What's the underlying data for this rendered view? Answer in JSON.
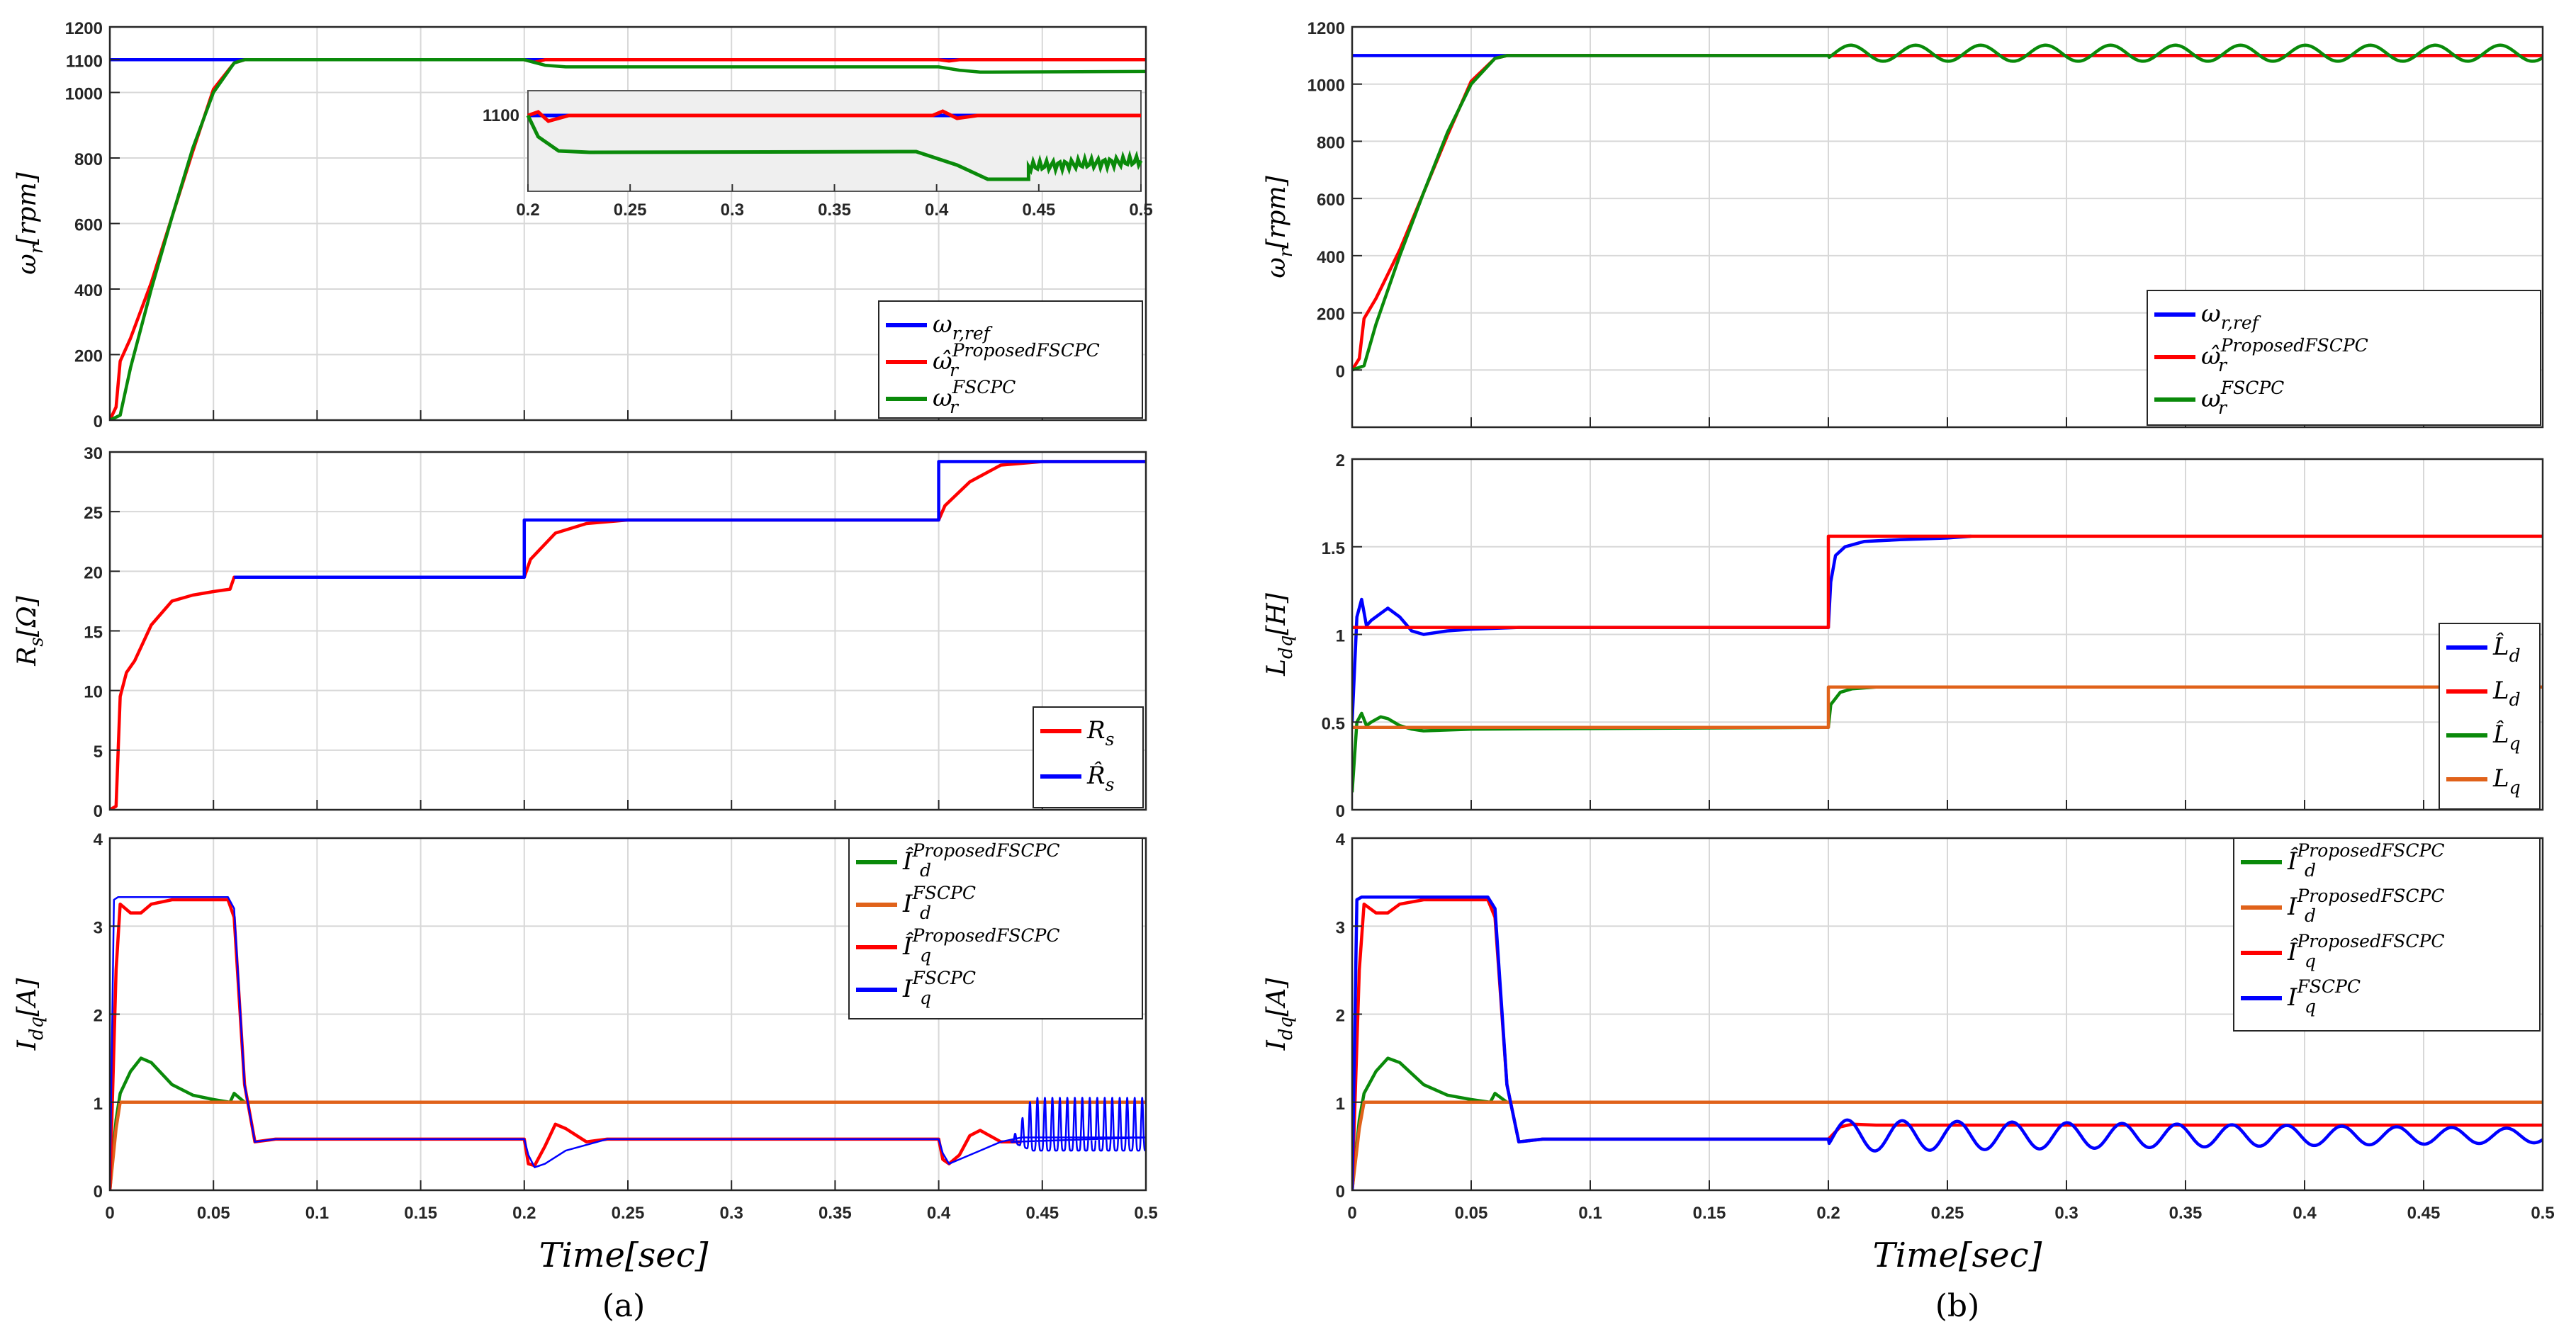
{
  "figure": {
    "xlabel": "Time[sec]",
    "captions": [
      "(a)",
      "(b)"
    ]
  },
  "colors": {
    "ref": "#0000ff",
    "proposed": "#ff0000",
    "fscpc": "#0a8a0a",
    "orange": "#e0621a",
    "grid": "#d8d8d8"
  },
  "chart_data": [
    {
      "id": "a1",
      "type": "line",
      "ylabel": "ω_r[rpm]",
      "ylabel_main": "ω",
      "ylabel_sub": "r",
      "ylabel_unit": "[rpm]",
      "xlim": [
        0,
        0.5
      ],
      "ylim": [
        0,
        1200
      ],
      "yticks": [
        0,
        200,
        400,
        600,
        800,
        1000,
        1100,
        1200
      ],
      "xticks": [
        0,
        0.05,
        0.1,
        0.15,
        0.2,
        0.25,
        0.3,
        0.35,
        0.4,
        0.45,
        0.5
      ],
      "show_xtick_labels": false,
      "legend": [
        "ω_r,ref",
        "ω̂_r^ProposedFSCPC",
        "ω_r^FSCPC"
      ],
      "legend_main": [
        "ω",
        "ω̂",
        "ω"
      ],
      "legend_sub": [
        "r,ref",
        "r",
        "r"
      ],
      "legend_sup": [
        "",
        "ProposedFSCPC",
        "FSCPC"
      ],
      "series": [
        {
          "name": "ω_r,ref",
          "color": "#0000ff",
          "x": [
            0,
            0.5
          ],
          "y": [
            1100,
            1100
          ]
        },
        {
          "name": "ω̂_r^ProposedFSCPC",
          "color": "#ff0000",
          "x": [
            0,
            0.003,
            0.005,
            0.01,
            0.02,
            0.03,
            0.04,
            0.05,
            0.06,
            0.065,
            0.2,
            0.205,
            0.21,
            0.4,
            0.405,
            0.41,
            0.5
          ],
          "y": [
            0,
            40,
            180,
            250,
            420,
            620,
            820,
            1010,
            1090,
            1100,
            1100,
            1092,
            1100,
            1100,
            1096,
            1100,
            1100
          ]
        },
        {
          "name": "ω_r^FSCPC",
          "color": "#0a8a0a",
          "x": [
            0,
            0.005,
            0.01,
            0.02,
            0.03,
            0.04,
            0.05,
            0.06,
            0.065,
            0.2,
            0.21,
            0.22,
            0.4,
            0.41,
            0.42,
            0.5
          ],
          "y": [
            0,
            15,
            160,
            400,
            620,
            830,
            1000,
            1090,
            1100,
            1100,
            1083,
            1078,
            1078,
            1068,
            1062,
            1064
          ]
        }
      ],
      "inset": {
        "xlim": [
          0.2,
          0.5
        ],
        "ytick_label": "1100",
        "xticks": [
          0.2,
          0.25,
          0.3,
          0.35,
          0.4,
          0.45,
          0.5
        ]
      }
    },
    {
      "id": "a2",
      "type": "line",
      "ylabel": "R_s[Ω]",
      "ylabel_main": "R",
      "ylabel_sub": "s",
      "ylabel_unit": "[Ω]",
      "xlim": [
        0,
        0.5
      ],
      "ylim": [
        0,
        30
      ],
      "yticks": [
        0,
        5,
        10,
        15,
        20,
        25,
        30
      ],
      "xticks": [
        0,
        0.05,
        0.1,
        0.15,
        0.2,
        0.25,
        0.3,
        0.35,
        0.4,
        0.45,
        0.5
      ],
      "show_xtick_labels": false,
      "legend": [
        "R_s",
        "R̂_s"
      ],
      "legend_main": [
        "R",
        "R̂"
      ],
      "legend_sub": [
        "s",
        "s"
      ],
      "legend_sup": [
        "",
        ""
      ],
      "series": [
        {
          "name": "R_s",
          "color": "#ff0000",
          "x": [
            0,
            0.003,
            0.005,
            0.008,
            0.012,
            0.02,
            0.03,
            0.04,
            0.05,
            0.058,
            0.06,
            0.2,
            0.203,
            0.215,
            0.23,
            0.25,
            0.4,
            0.403,
            0.415,
            0.43,
            0.45,
            0.5
          ],
          "y": [
            0,
            0.3,
            9.5,
            11.5,
            12.5,
            15.5,
            17.5,
            18.0,
            18.3,
            18.5,
            19.5,
            19.5,
            21,
            23.2,
            24.0,
            24.3,
            24.3,
            25.5,
            27.5,
            28.9,
            29.2,
            29.2
          ]
        },
        {
          "name": "R̂_s",
          "color": "#0000ff",
          "x": [
            0.06,
            0.2,
            0.2,
            0.4,
            0.4,
            0.5
          ],
          "y": [
            19.5,
            19.5,
            24.3,
            24.3,
            29.2,
            29.2
          ]
        }
      ]
    },
    {
      "id": "a3",
      "type": "line",
      "ylabel": "I_dq[A]",
      "ylabel_main": "I",
      "ylabel_sub": "dq",
      "ylabel_unit": "[A]",
      "xlim": [
        0,
        0.5
      ],
      "ylim": [
        0,
        4
      ],
      "yticks": [
        0,
        1,
        2,
        3,
        4
      ],
      "xticks": [
        0,
        0.05,
        0.1,
        0.15,
        0.2,
        0.25,
        0.3,
        0.35,
        0.4,
        0.45,
        0.5
      ],
      "xtick_labels": [
        "0",
        "0.05",
        "0.1",
        "0.15",
        "0.2",
        "0.25",
        "0.3",
        "0.35",
        "0.4",
        "0.45",
        "0.5"
      ],
      "show_xtick_labels": true,
      "legend": [
        "Î_d^ProposedFSCPC",
        "I_d^FSCPC",
        "Î_q^ProposedFSCPC",
        "I_q^FSCPC"
      ],
      "legend_main": [
        "Î",
        "I",
        "Î",
        "I"
      ],
      "legend_sub": [
        "d",
        "d",
        "q",
        "q"
      ],
      "legend_sup": [
        "ProposedFSCPC",
        "FSCPC",
        "ProposedFSCPC",
        "FSCPC"
      ],
      "series": [
        {
          "name": "Î_d^ProposedFSCPC",
          "color": "#0a8a0a",
          "x": [
            0,
            0.003,
            0.005,
            0.01,
            0.015,
            0.02,
            0.03,
            0.04,
            0.05,
            0.058,
            0.06,
            0.065,
            0.5
          ],
          "y": [
            0,
            0.8,
            1.1,
            1.35,
            1.5,
            1.45,
            1.2,
            1.08,
            1.03,
            1.0,
            1.1,
            1.0,
            1.0
          ]
        },
        {
          "name": "I_d^FSCPC",
          "color": "#e0621a",
          "x": [
            0,
            0.003,
            0.005,
            0.5
          ],
          "y": [
            0,
            0.7,
            1.0,
            1.0
          ]
        },
        {
          "name": "Î_q^ProposedFSCPC",
          "color": "#ff0000",
          "x": [
            0,
            0.003,
            0.005,
            0.01,
            0.015,
            0.02,
            0.03,
            0.04,
            0.05,
            0.057,
            0.06,
            0.065,
            0.07,
            0.08,
            0.2,
            0.202,
            0.205,
            0.21,
            0.215,
            0.22,
            0.23,
            0.24,
            0.4,
            0.402,
            0.405,
            0.41,
            0.415,
            0.42,
            0.43,
            0.44
          ],
          "y": [
            0,
            2.5,
            3.25,
            3.15,
            3.15,
            3.25,
            3.3,
            3.3,
            3.3,
            3.3,
            3.1,
            1.2,
            0.55,
            0.58,
            0.58,
            0.3,
            0.28,
            0.5,
            0.75,
            0.7,
            0.55,
            0.58,
            0.58,
            0.35,
            0.3,
            0.4,
            0.62,
            0.68,
            0.55,
            0.55
          ]
        },
        {
          "name": "I_q^FSCPC",
          "color": "#0000ff",
          "x": [
            0,
            0.002,
            0.004,
            0.057,
            0.06,
            0.065,
            0.07,
            0.08,
            0.2,
            0.202,
            0.205,
            0.21,
            0.22,
            0.24,
            0.4,
            0.402,
            0.405,
            0.41,
            0.42,
            0.43,
            0.44,
            0.5
          ],
          "y": [
            0,
            3.3,
            3.33,
            3.33,
            3.2,
            1.2,
            0.55,
            0.58,
            0.58,
            0.4,
            0.26,
            0.3,
            0.45,
            0.58,
            0.58,
            0.42,
            0.3,
            0.35,
            0.45,
            0.55,
            0.6,
            0.6
          ],
          "oscillation": {
            "x_start": 0.435,
            "x_end": 0.5,
            "cycles": 18,
            "low": 0.45,
            "high": 1.05
          }
        }
      ]
    },
    {
      "id": "b1",
      "type": "line",
      "ylabel": "ω_r[rpm]",
      "ylabel_main": "ω",
      "ylabel_sub": "r",
      "ylabel_unit": "[rpm]",
      "xlim": [
        0,
        0.5
      ],
      "ylim": [
        -200,
        1200
      ],
      "yticks": [
        0,
        200,
        400,
        600,
        800,
        1000,
        1200
      ],
      "xticks": [
        0,
        0.05,
        0.1,
        0.15,
        0.2,
        0.25,
        0.3,
        0.35,
        0.4,
        0.45,
        0.5
      ],
      "show_xtick_labels": false,
      "legend": [
        "ω_r,ref",
        "ω̂_r^ProposedFSCPC",
        "ω_r^FSCPC"
      ],
      "legend_main": [
        "ω",
        "ω̂",
        "ω"
      ],
      "legend_sub": [
        "r,ref",
        "r",
        "r"
      ],
      "legend_sup": [
        "",
        "ProposedFSCPC",
        "FSCPC"
      ],
      "series": [
        {
          "name": "ω_r,ref",
          "color": "#0000ff",
          "x": [
            0,
            0.5
          ],
          "y": [
            1100,
            1100
          ]
        },
        {
          "name": "ω̂_r^ProposedFSCPC",
          "color": "#ff0000",
          "x": [
            0,
            0.003,
            0.005,
            0.01,
            0.02,
            0.03,
            0.04,
            0.05,
            0.06,
            0.065,
            0.5
          ],
          "y": [
            0,
            40,
            180,
            250,
            420,
            620,
            820,
            1010,
            1090,
            1100,
            1100
          ]
        },
        {
          "name": "ω_r^FSCPC",
          "color": "#0a8a0a",
          "x": [
            0,
            0.005,
            0.01,
            0.02,
            0.03,
            0.04,
            0.05,
            0.06,
            0.065,
            0.2
          ],
          "y": [
            0,
            15,
            160,
            400,
            620,
            830,
            1000,
            1090,
            1100,
            1100
          ],
          "oscillation": {
            "x_start": 0.2,
            "x_end": 0.5,
            "cycles": 11,
            "center": 1108,
            "amplitude": 28
          }
        }
      ]
    },
    {
      "id": "b2",
      "type": "line",
      "ylabel": "L_dq[H]",
      "ylabel_main": "L",
      "ylabel_sub": "dq",
      "ylabel_unit": "[H]",
      "xlim": [
        0,
        0.5
      ],
      "ylim": [
        0,
        2
      ],
      "yticks": [
        0,
        0.5,
        1,
        1.5,
        2
      ],
      "xticks": [
        0,
        0.05,
        0.1,
        0.15,
        0.2,
        0.25,
        0.3,
        0.35,
        0.4,
        0.45,
        0.5
      ],
      "show_xtick_labels": false,
      "legend": [
        "L̂_d",
        "L_d",
        "L̂_q",
        "L_q"
      ],
      "legend_main": [
        "L̂",
        "L",
        "L̂",
        "L"
      ],
      "legend_sub": [
        "d",
        "d",
        "q",
        "q"
      ],
      "legend_sup": [
        "",
        "",
        "",
        ""
      ],
      "series": [
        {
          "name": "L̂_d",
          "color": "#0000ff",
          "x": [
            0,
            0.002,
            0.004,
            0.006,
            0.008,
            0.012,
            0.015,
            0.02,
            0.025,
            0.03,
            0.04,
            0.05,
            0.07,
            0.2,
            0.201,
            0.203,
            0.207,
            0.215,
            0.23,
            0.25,
            0.26
          ],
          "y": [
            0.5,
            1.1,
            1.2,
            1.05,
            1.08,
            1.12,
            1.15,
            1.1,
            1.02,
            1.0,
            1.02,
            1.03,
            1.04,
            1.04,
            1.3,
            1.45,
            1.5,
            1.53,
            1.54,
            1.55,
            1.56
          ]
        },
        {
          "name": "L_d",
          "color": "#ff0000",
          "x": [
            0,
            0.2,
            0.2,
            0.5
          ],
          "y": [
            1.04,
            1.04,
            1.56,
            1.56
          ]
        },
        {
          "name": "L̂_q",
          "color": "#0a8a0a",
          "x": [
            0,
            0.002,
            0.004,
            0.006,
            0.008,
            0.012,
            0.015,
            0.02,
            0.025,
            0.03,
            0.05,
            0.2,
            0.201,
            0.205,
            0.21,
            0.22,
            0.24
          ],
          "y": [
            0.1,
            0.5,
            0.55,
            0.48,
            0.5,
            0.53,
            0.52,
            0.48,
            0.46,
            0.45,
            0.46,
            0.47,
            0.6,
            0.67,
            0.69,
            0.7,
            0.7
          ]
        },
        {
          "name": "L_q",
          "color": "#e0621a",
          "x": [
            0,
            0.2,
            0.2,
            0.5
          ],
          "y": [
            0.47,
            0.47,
            0.7,
            0.7
          ]
        }
      ]
    },
    {
      "id": "b3",
      "type": "line",
      "ylabel": "I_dq[A]",
      "ylabel_main": "I",
      "ylabel_sub": "dq",
      "ylabel_unit": "[A]",
      "xlim": [
        0,
        0.5
      ],
      "ylim": [
        0,
        4
      ],
      "yticks": [
        0,
        1,
        2,
        3,
        4
      ],
      "xticks": [
        0,
        0.05,
        0.1,
        0.15,
        0.2,
        0.25,
        0.3,
        0.35,
        0.4,
        0.45,
        0.5
      ],
      "xtick_labels": [
        "0",
        "0.05",
        "0.1",
        "0.15",
        "0.2",
        "0.25",
        "0.3",
        "0.35",
        "0.4",
        "0.45",
        "0.5"
      ],
      "show_xtick_labels": true,
      "legend": [
        "Î_d^ProposedFSCPC",
        "I_d^ProposedFSCPC",
        "Î_q^ProposedFSCPC",
        "I_q^FSCPC"
      ],
      "legend_main": [
        "Î",
        "I",
        "Î",
        "I"
      ],
      "legend_sub": [
        "d",
        "d",
        "q",
        "q"
      ],
      "legend_sup": [
        "ProposedFSCPC",
        "ProposedFSCPC",
        "ProposedFSCPC",
        "FSCPC"
      ],
      "series": [
        {
          "name": "Î_d^ProposedFSCPC",
          "color": "#0a8a0a",
          "x": [
            0,
            0.003,
            0.005,
            0.01,
            0.015,
            0.02,
            0.03,
            0.04,
            0.05,
            0.058,
            0.06,
            0.065,
            0.5
          ],
          "y": [
            0,
            0.8,
            1.1,
            1.35,
            1.5,
            1.45,
            1.2,
            1.08,
            1.03,
            1.0,
            1.1,
            1.0,
            1.0
          ]
        },
        {
          "name": "I_d^ProposedFSCPC",
          "color": "#e0621a",
          "x": [
            0,
            0.003,
            0.005,
            0.5
          ],
          "y": [
            0,
            0.7,
            1.0,
            1.0
          ]
        },
        {
          "name": "Î_q^ProposedFSCPC",
          "color": "#ff0000",
          "x": [
            0,
            0.003,
            0.005,
            0.01,
            0.015,
            0.02,
            0.03,
            0.04,
            0.05,
            0.057,
            0.06,
            0.065,
            0.07,
            0.08,
            0.2,
            0.205,
            0.21,
            0.22,
            0.5
          ],
          "y": [
            0,
            2.5,
            3.25,
            3.15,
            3.15,
            3.25,
            3.3,
            3.3,
            3.3,
            3.3,
            3.1,
            1.2,
            0.55,
            0.58,
            0.58,
            0.72,
            0.75,
            0.74,
            0.74
          ]
        },
        {
          "name": "I_q^FSCPC",
          "color": "#0000ff",
          "x": [
            0,
            0.002,
            0.004,
            0.057,
            0.06,
            0.065,
            0.07,
            0.08,
            0.2
          ],
          "y": [
            0,
            3.3,
            3.33,
            3.33,
            3.2,
            1.2,
            0.55,
            0.58,
            0.58
          ],
          "oscillation": {
            "x_start": 0.2,
            "x_end": 0.5,
            "cycles": 13,
            "center": 0.62,
            "amplitude": 0.18,
            "decay_to": 0.08
          }
        }
      ]
    }
  ]
}
